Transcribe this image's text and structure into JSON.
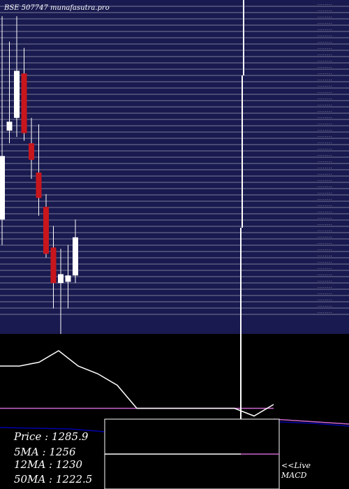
{
  "header": {
    "text": "BSE 507747 munafasutra.pro"
  },
  "colors": {
    "price_panel_bg": "#191a4f",
    "gridline": "#ffffff",
    "up_candle": "#ffffff",
    "down_candle": "#c8161d",
    "macd_line": "#ffffff",
    "signal_line": "#cc66cc",
    "blue_line": "#0000aa",
    "text": "#ffffff"
  },
  "chart_data": {
    "type": "candlestick",
    "candles": [
      {
        "dir": "up",
        "open": 1260,
        "close": 1310,
        "high": 1420,
        "low": 1240
      },
      {
        "dir": "up",
        "open": 1330,
        "close": 1337,
        "high": 1400,
        "low": 1320
      },
      {
        "dir": "up",
        "open": 1340,
        "close": 1377,
        "high": 1420,
        "low": 1325
      },
      {
        "dir": "down",
        "open": 1375,
        "close": 1328,
        "high": 1395,
        "low": 1322
      },
      {
        "dir": "down",
        "open": 1320,
        "close": 1307,
        "high": 1340,
        "low": 1292
      },
      {
        "dir": "down",
        "open": 1297,
        "close": 1277,
        "high": 1335,
        "low": 1263
      },
      {
        "dir": "down",
        "open": 1270,
        "close": 1233,
        "high": 1280,
        "low": 1230
      },
      {
        "dir": "down",
        "open": 1238,
        "close": 1210,
        "high": 1255,
        "low": 1190
      },
      {
        "dir": "up",
        "open": 1210,
        "close": 1217,
        "high": 1237,
        "low": 1170
      },
      {
        "dir": "up",
        "open": 1211,
        "close": 1216,
        "high": 1240,
        "low": 1190
      },
      {
        "dir": "up",
        "open": 1216,
        "close": 1246,
        "high": 1260,
        "low": 1210
      }
    ],
    "ylim": [
      1170,
      1430
    ],
    "grid": true,
    "macd": {
      "macd_line": [
        12,
        12,
        13,
        16,
        12,
        10,
        7,
        1,
        1,
        1,
        1,
        1,
        1,
        -1,
        2
      ],
      "signal_line": [
        1,
        1,
        1,
        1,
        1,
        1,
        1,
        1,
        1,
        1,
        1,
        1,
        1,
        1,
        1
      ],
      "ylim": [
        -4,
        20
      ]
    }
  },
  "legend": {
    "price": "Price   : 1285.9",
    "ma5": "5MA : 1256",
    "ma12": "12MA : 1230",
    "ma50": "50MA : 1222.5"
  },
  "macd_label": {
    "line1": "<<Live",
    "line2": "MACD"
  }
}
